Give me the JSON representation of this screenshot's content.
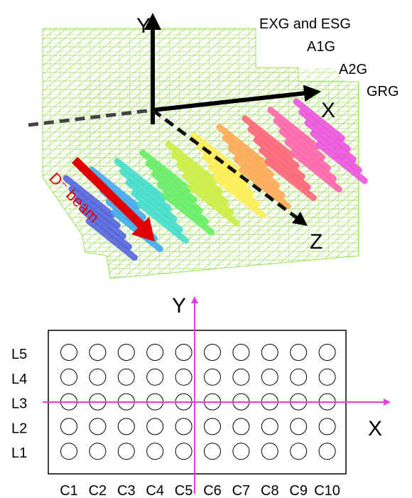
{
  "view3d": {
    "y_axis": "Y",
    "x_axis": "X",
    "z_axis": "Z",
    "beam": "D⁻ beam",
    "groups": [
      "EXG and ESG",
      "A1G",
      "A2G",
      "GRG"
    ]
  },
  "layout": {
    "y_axis": "Y",
    "x_axis": "X",
    "rows": [
      "L5",
      "L4",
      "L3",
      "L2",
      "L1"
    ],
    "columns": [
      "C1",
      "C2",
      "C3",
      "C4",
      "C5",
      "C6",
      "C7",
      "C8",
      "C9",
      "C10"
    ]
  }
}
